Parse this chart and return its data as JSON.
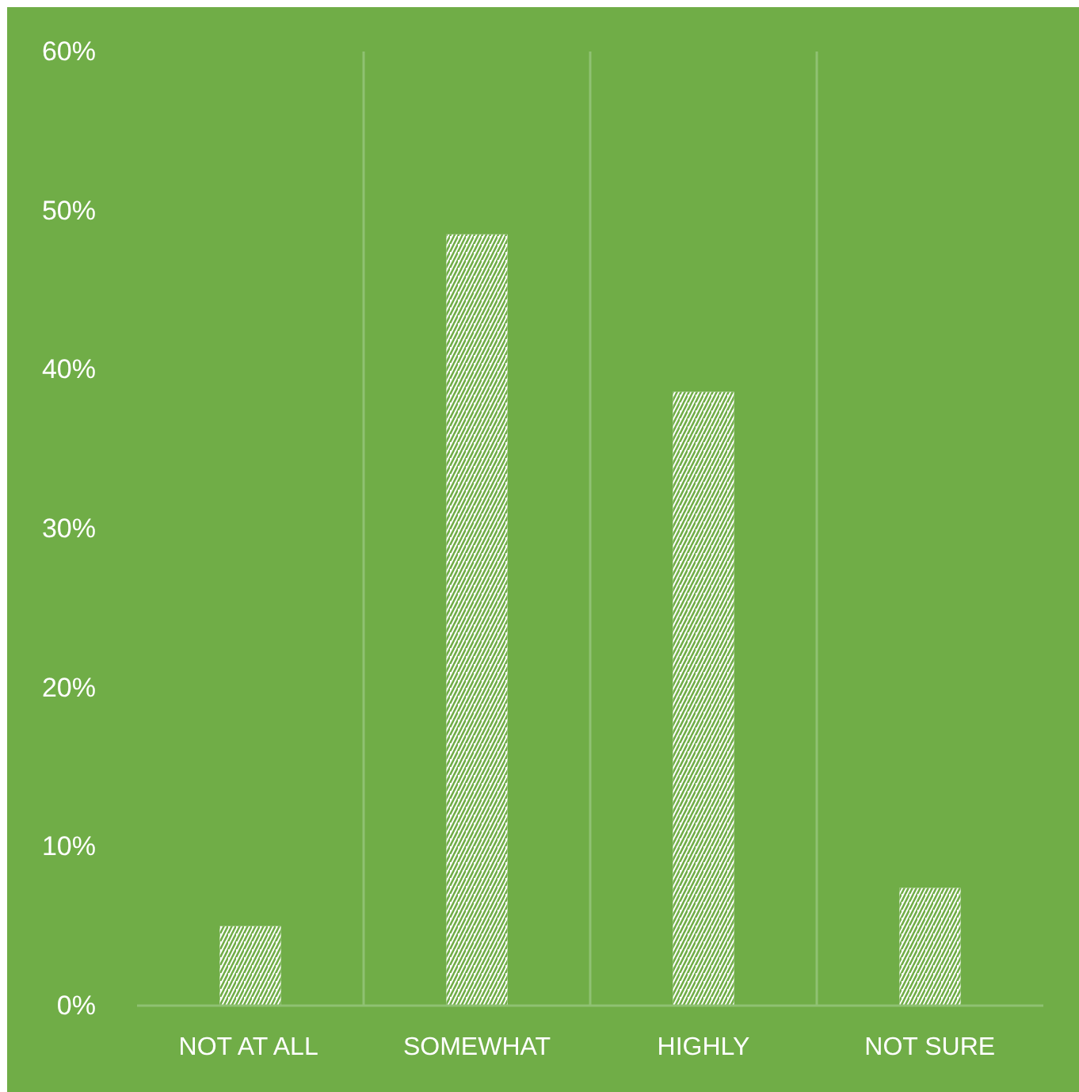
{
  "chart_data": {
    "type": "bar",
    "categories": [
      "NOT AT ALL",
      "SOMEWHAT",
      "HIGHLY",
      "NOT SURE"
    ],
    "values": [
      5,
      48.5,
      38.6,
      7.4
    ],
    "color": "#ffffff",
    "ylim": [
      0,
      60
    ],
    "yticks": [
      {
        "value": 0,
        "label": "0%"
      },
      {
        "value": 10,
        "label": "10%"
      },
      {
        "value": 20,
        "label": "20%"
      },
      {
        "value": 30,
        "label": "30%"
      },
      {
        "value": 40,
        "label": "40%"
      },
      {
        "value": 50,
        "label": "50%"
      },
      {
        "value": 60,
        "label": "60%"
      }
    ],
    "grid": "x"
  }
}
